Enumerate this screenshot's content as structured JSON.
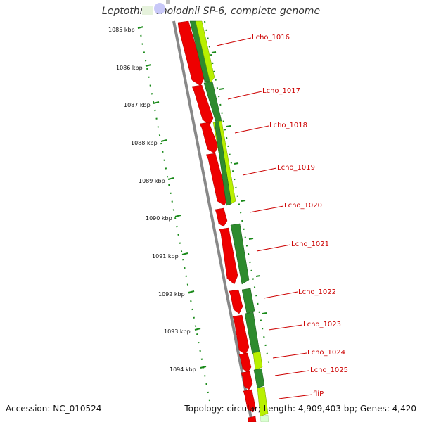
{
  "title": "Leptothrix cholodnii SP-6, complete genome",
  "footer": {
    "accession": "Accession: NC_010524",
    "topology": "Topology: circular; Length: 4,909,403 bp; Genes: 4,420"
  },
  "ruler": [
    {
      "label": "1085 kbp"
    },
    {
      "label": "1086 kbp"
    },
    {
      "label": "1087 kbp"
    },
    {
      "label": "1088 kbp"
    },
    {
      "label": "1089 kbp"
    },
    {
      "label": "1090 kbp"
    },
    {
      "label": "1091 kbp"
    },
    {
      "label": "1092 kbp"
    },
    {
      "label": "1093 kbp"
    },
    {
      "label": "1094 kbp"
    }
  ],
  "genes": [
    {
      "label": "Lcho_1016"
    },
    {
      "label": "Lcho_1017"
    },
    {
      "label": "Lcho_1018"
    },
    {
      "label": "Lcho_1019"
    },
    {
      "label": "Lcho_1020"
    },
    {
      "label": "Lcho_1021"
    },
    {
      "label": "Lcho_1022"
    },
    {
      "label": "Lcho_1023"
    },
    {
      "label": "Lcho_1024"
    },
    {
      "label": "Lcho_1025"
    },
    {
      "label": "fliP"
    }
  ],
  "colors": {
    "cds_red": "#ee0000",
    "cds_green": "#2e8b2e",
    "cds_lime": "#b8f000",
    "backbone": "#888888",
    "ruler": "#1a8a1a",
    "label": "#cc0000"
  }
}
